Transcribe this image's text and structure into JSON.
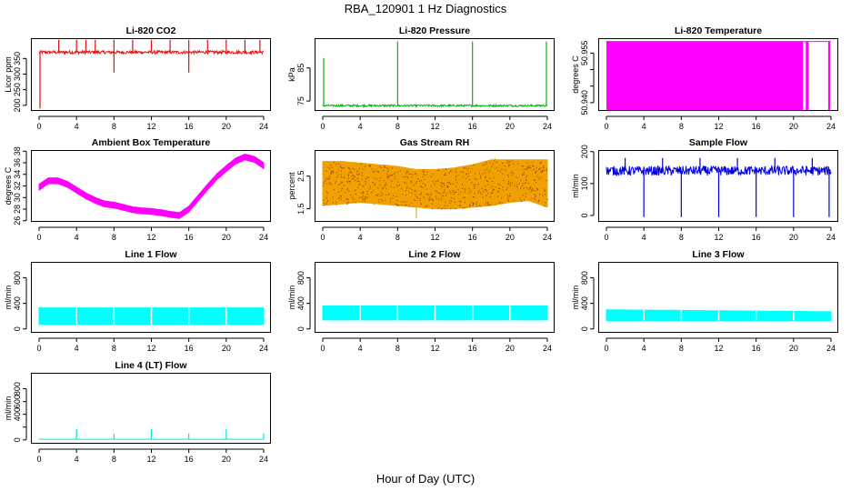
{
  "figure": {
    "title": "RBA_120901  1 Hz Diagnostics",
    "xlabel": "Hour of Day (UTC)"
  },
  "x_ticks": [
    "0",
    "4",
    "8",
    "12",
    "16",
    "20",
    "24"
  ],
  "chart_data": [
    {
      "type": "line",
      "title": "Li-820 CO2",
      "ylabel": "Licor ppm",
      "color": "#e01010",
      "xlim": [
        0,
        24
      ],
      "ylim": [
        182,
        415
      ],
      "y_ticks": [
        200,
        250,
        300,
        350
      ],
      "baseline": 370,
      "noise": 5,
      "spikes": [
        {
          "x": 0.1,
          "y": 190
        },
        {
          "x": 2.1,
          "y": 410
        },
        {
          "x": 4.0,
          "y": 410
        },
        {
          "x": 5.0,
          "y": 410
        },
        {
          "x": 6.0,
          "y": 410
        },
        {
          "x": 8.0,
          "y": 410
        },
        {
          "x": 8.0,
          "y": 305
        },
        {
          "x": 10.0,
          "y": 410
        },
        {
          "x": 12.0,
          "y": 410
        },
        {
          "x": 14.0,
          "y": 410
        },
        {
          "x": 16.0,
          "y": 410
        },
        {
          "x": 16.0,
          "y": 305
        },
        {
          "x": 18.0,
          "y": 410
        },
        {
          "x": 20.0,
          "y": 410
        },
        {
          "x": 22.0,
          "y": 410
        },
        {
          "x": 23.6,
          "y": 410
        }
      ]
    },
    {
      "type": "line",
      "title": "Li-820 Pressure",
      "ylabel": "kPa",
      "color": "#10b010",
      "xlim": [
        0,
        24
      ],
      "ylim": [
        72,
        94
      ],
      "y_ticks": [
        75,
        85
      ],
      "baseline": 73.6,
      "noise": 0.3,
      "spikes": [
        {
          "x": 0.1,
          "y": 88
        },
        {
          "x": 8.0,
          "y": 93
        },
        {
          "x": 16.0,
          "y": 93
        },
        {
          "x": 23.9,
          "y": 93
        }
      ]
    },
    {
      "type": "fill-bands",
      "title": "Li-820 Temperature",
      "ylabel": "degrees C",
      "color": "#ff00ff",
      "xlim": [
        0,
        24
      ],
      "ylim": [
        50.9375,
        50.9595
      ],
      "y_ticks": [
        50.94,
        50.945,
        50.95,
        50.955
      ],
      "y_tick_labels": [
        "50.940",
        "",
        "",
        "50.955"
      ],
      "ymax_value": 50.9585,
      "bands": [
        [
          0,
          21.0
        ],
        [
          21.3,
          21.6
        ],
        [
          23.7,
          23.9
        ]
      ]
    },
    {
      "type": "line",
      "title": "Ambient Box Temperature",
      "ylabel": "degrees C",
      "color": "#ff00ff",
      "xlim": [
        0,
        24
      ],
      "ylim": [
        25.8,
        38.2
      ],
      "y_ticks": [
        26,
        28,
        30,
        32,
        34,
        36,
        38
      ],
      "noise": 0.5,
      "x": [
        0,
        1,
        2,
        3,
        4,
        5,
        6,
        7,
        8,
        9,
        10,
        11,
        12,
        13,
        14,
        15,
        16,
        17,
        18,
        19,
        20,
        21,
        22,
        23,
        24
      ],
      "y": [
        31.8,
        32.9,
        32.9,
        32.3,
        31.3,
        30.3,
        29.5,
        28.9,
        28.7,
        28.3,
        27.9,
        27.7,
        27.6,
        27.4,
        27.1,
        26.9,
        28.0,
        29.9,
        31.8,
        33.6,
        35.0,
        36.3,
        37.0,
        36.6,
        35.5
      ]
    },
    {
      "type": "band",
      "title": "Gas Stream RH",
      "ylabel": "percent",
      "color": "#f0a000",
      "dot_color": "#8a3a00",
      "xlim": [
        0,
        24
      ],
      "ylim": [
        1.1,
        3.3
      ],
      "y_ticks": [
        1.5,
        2.5
      ],
      "x": [
        0,
        2,
        4,
        6,
        8,
        10,
        12,
        14,
        16,
        18,
        20,
        22,
        24
      ],
      "y_low": [
        1.6,
        1.65,
        1.7,
        1.65,
        1.6,
        1.55,
        1.5,
        1.5,
        1.55,
        1.6,
        1.7,
        1.75,
        1.55
      ],
      "y_high": [
        2.95,
        2.95,
        2.9,
        2.85,
        2.8,
        2.7,
        2.7,
        2.75,
        2.85,
        3.0,
        3.0,
        3.0,
        3.0
      ],
      "outliers": [
        {
          "x": 10.0,
          "y": 1.2
        },
        {
          "x": 18.4,
          "y": 3.05
        }
      ]
    },
    {
      "type": "line",
      "title": "Sample Flow",
      "ylabel": "ml/min",
      "color": "#0000e0",
      "xlim": [
        0,
        24
      ],
      "ylim": [
        -20,
        205
      ],
      "y_ticks": [
        0,
        100,
        200
      ],
      "baseline": 140,
      "noise": 15,
      "spikes": [
        {
          "x": 4.0,
          "y": -5
        },
        {
          "x": 8.0,
          "y": -5
        },
        {
          "x": 12.0,
          "y": -5
        },
        {
          "x": 16.0,
          "y": -5
        },
        {
          "x": 20.0,
          "y": -5
        },
        {
          "x": 23.8,
          "y": -5
        },
        {
          "x": 2.0,
          "y": 180
        },
        {
          "x": 6.0,
          "y": 180
        },
        {
          "x": 10.0,
          "y": 180
        },
        {
          "x": 14.0,
          "y": 180
        },
        {
          "x": 18.0,
          "y": 180
        },
        {
          "x": 22.0,
          "y": 180
        }
      ]
    },
    {
      "type": "band",
      "title": "Line 1 Flow",
      "ylabel": "ml/min",
      "color": "#00ffff",
      "xlim": [
        0,
        24
      ],
      "ylim": [
        -60,
        1050
      ],
      "y_ticks": [
        0,
        400,
        800
      ],
      "x": [
        0,
        24
      ],
      "y_low": [
        70,
        70
      ],
      "y_high": [
        330,
        330
      ],
      "gaps": [
        4,
        8,
        12,
        16,
        20
      ]
    },
    {
      "type": "band",
      "title": "Line 2 Flow",
      "ylabel": "ml/min",
      "color": "#00ffff",
      "xlim": [
        0,
        24
      ],
      "ylim": [
        -60,
        1050
      ],
      "y_ticks": [
        0,
        400,
        800
      ],
      "x": [
        0,
        24
      ],
      "y_low": [
        140,
        140
      ],
      "y_high": [
        360,
        360
      ],
      "gaps": [
        4,
        8,
        12,
        16,
        20
      ]
    },
    {
      "type": "band",
      "title": "Line 3 Flow",
      "ylabel": "ml/min",
      "color": "#00ffff",
      "xlim": [
        0,
        24
      ],
      "ylim": [
        -60,
        1050
      ],
      "y_ticks": [
        0,
        400,
        800
      ],
      "x": [
        0,
        24
      ],
      "y_low": [
        130,
        130
      ],
      "y_high": [
        300,
        270
      ],
      "gaps": [
        4,
        8,
        12,
        16,
        20
      ]
    },
    {
      "type": "line",
      "title": "Line 4 (LT) Flow",
      "ylabel": "ml/min",
      "color": "#00e5e5",
      "xlim": [
        0,
        24
      ],
      "ylim": [
        -60,
        1050
      ],
      "y_ticks": [
        0,
        200,
        400,
        600,
        800
      ],
      "y_tick_labels": [
        "0",
        "",
        "400",
        "600",
        "800"
      ],
      "baseline": 10,
      "noise": 0,
      "spikes": [
        {
          "x": 4.0,
          "y": 170
        },
        {
          "x": 8.0,
          "y": 100
        },
        {
          "x": 12.0,
          "y": 170
        },
        {
          "x": 16.0,
          "y": 100
        },
        {
          "x": 20.0,
          "y": 170
        },
        {
          "x": 24.0,
          "y": 100
        }
      ]
    }
  ]
}
